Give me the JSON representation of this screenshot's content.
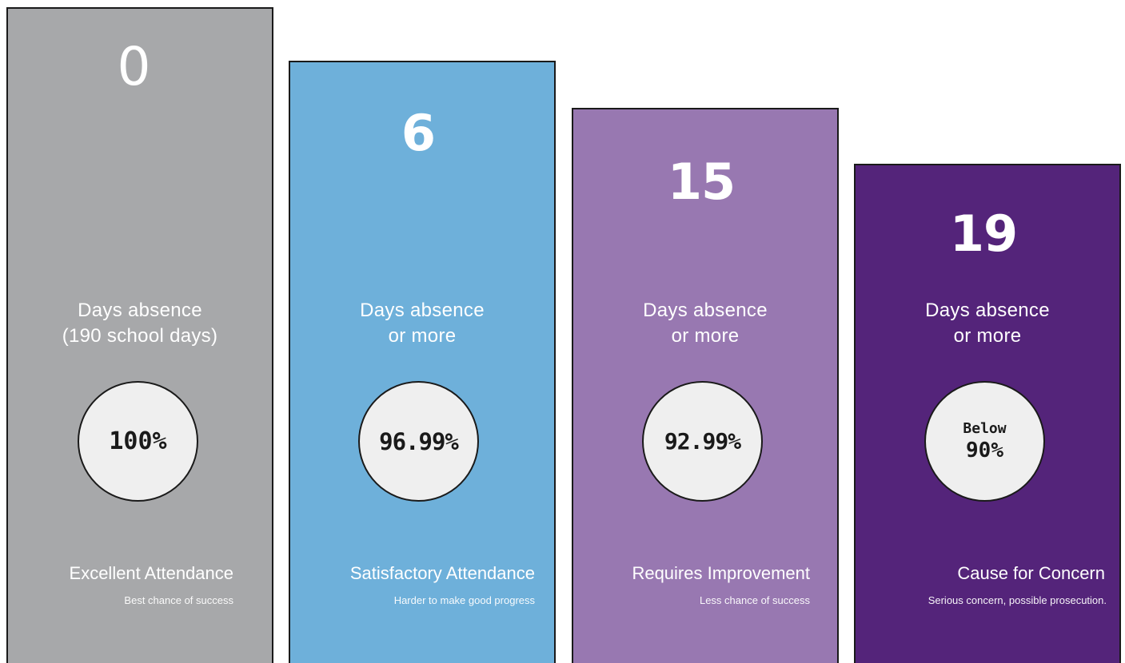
{
  "columns": [
    {
      "number": "0",
      "absence_line1": "Days absence",
      "absence_line2": "(190 school days)",
      "percent_top": "",
      "percent": "100%",
      "status": "Excellent Attendance",
      "sub": "Best chance of success",
      "color": "#a7a8aa"
    },
    {
      "number": "6",
      "absence_line1": "Days absence",
      "absence_line2": "or more",
      "percent_top": "",
      "percent": "96.99%",
      "status": "Satisfactory Attendance",
      "sub": "Harder to make good progress",
      "color": "#6eb0da"
    },
    {
      "number": "15",
      "absence_line1": "Days absence",
      "absence_line2": "or more",
      "percent_top": "",
      "percent": "92.99%",
      "status": "Requires Improvement",
      "sub": "Less chance of success",
      "color": "#9878b1"
    },
    {
      "number": "19",
      "absence_line1": "Days absence",
      "absence_line2": "or more",
      "percent_top": "Below",
      "percent": "90%",
      "status": "Cause for Concern",
      "sub": "Serious concern, possible prosecution.",
      "color": "#54247a"
    }
  ]
}
